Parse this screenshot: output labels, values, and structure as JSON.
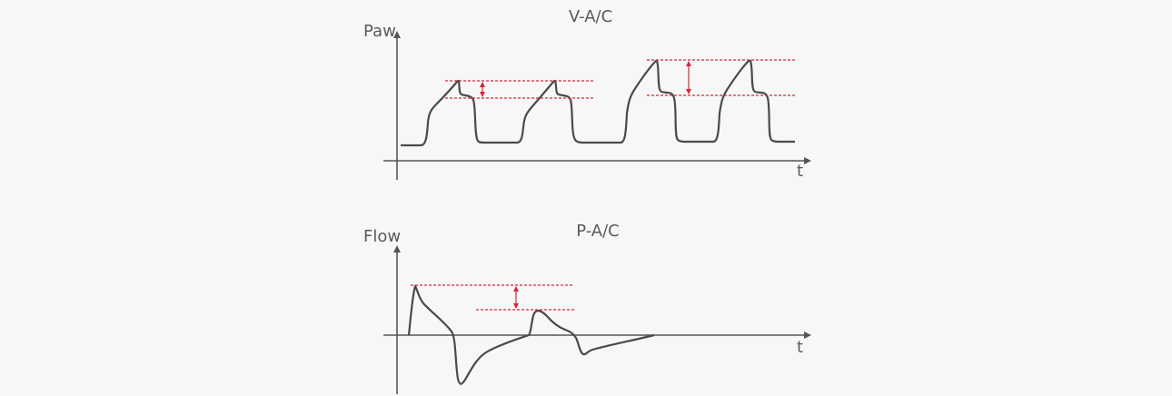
{
  "top_chart": {
    "title": "V-A/C",
    "y_label": "Paw",
    "x_label": "t"
  },
  "bottom_chart": {
    "title": "P-A/C",
    "y_label": "Flow",
    "x_label": "t"
  },
  "colors": {
    "waveform": "#4a4a4a",
    "reference_lines": "#d9253a",
    "axes": "#555555",
    "background": "#f7f7f7"
  }
}
